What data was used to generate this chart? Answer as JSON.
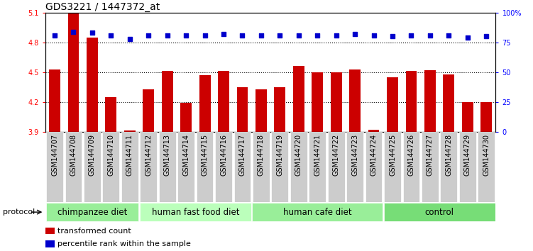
{
  "title": "GDS3221 / 1447372_at",
  "samples": [
    "GSM144707",
    "GSM144708",
    "GSM144709",
    "GSM144710",
    "GSM144711",
    "GSM144712",
    "GSM144713",
    "GSM144714",
    "GSM144715",
    "GSM144716",
    "GSM144717",
    "GSM144718",
    "GSM144719",
    "GSM144720",
    "GSM144721",
    "GSM144722",
    "GSM144723",
    "GSM144724",
    "GSM144725",
    "GSM144726",
    "GSM144727",
    "GSM144728",
    "GSM144729",
    "GSM144730"
  ],
  "bar_values": [
    4.53,
    5.09,
    4.85,
    4.25,
    3.91,
    4.33,
    4.51,
    4.19,
    4.47,
    4.51,
    4.35,
    4.33,
    4.35,
    4.56,
    4.5,
    4.5,
    4.53,
    3.92,
    4.45,
    4.51,
    4.52,
    4.48,
    4.2,
    4.2
  ],
  "dot_values": [
    81,
    84,
    83,
    81,
    78,
    81,
    81,
    81,
    81,
    82,
    81,
    81,
    81,
    81,
    81,
    81,
    82,
    81,
    80,
    81,
    81,
    81,
    79,
    80
  ],
  "ylim": [
    3.9,
    5.1
  ],
  "yticks_left": [
    3.9,
    4.2,
    4.5,
    4.8,
    5.1
  ],
  "yticks_right": [
    0,
    25,
    50,
    75,
    100
  ],
  "bar_color": "#cc0000",
  "dot_color": "#0000cc",
  "groups": [
    {
      "label": "chimpanzee diet",
      "start": 0,
      "end": 5,
      "color": "#99ee99"
    },
    {
      "label": "human fast food diet",
      "start": 5,
      "end": 11,
      "color": "#bbffbb"
    },
    {
      "label": "human cafe diet",
      "start": 11,
      "end": 18,
      "color": "#99ee99"
    },
    {
      "label": "control",
      "start": 18,
      "end": 24,
      "color": "#77dd77"
    }
  ],
  "protocol_label": "protocol",
  "legend_bar_label": "transformed count",
  "legend_dot_label": "percentile rank within the sample",
  "title_fontsize": 10,
  "tick_fontsize": 7,
  "group_fontsize": 8.5,
  "legend_fontsize": 8
}
